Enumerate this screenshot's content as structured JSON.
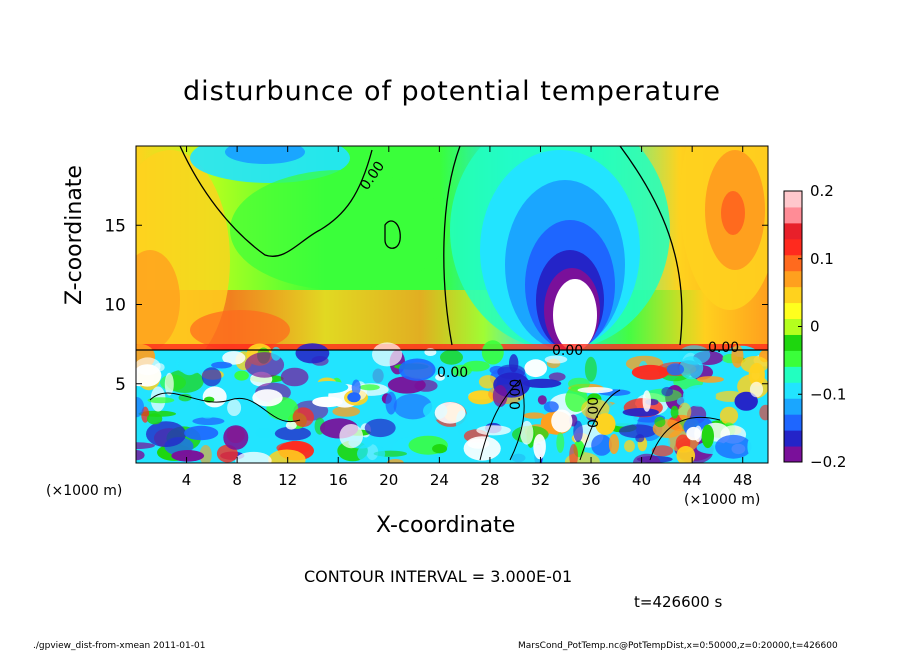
{
  "chart_data": {
    "type": "heatmap",
    "title": "disturbunce of potential temperature",
    "xlabel": "X-coordinate",
    "ylabel": "Z-coordinate",
    "x_unit_label": "(×1000 m)",
    "x_ticks": [
      4,
      8,
      12,
      16,
      20,
      24,
      28,
      32,
      36,
      40,
      44,
      48
    ],
    "y_ticks": [
      5,
      10,
      15
    ],
    "xlim": [
      0,
      50
    ],
    "ylim": [
      0,
      20
    ],
    "colorbar": {
      "range": [
        -0.2,
        0.2
      ],
      "tick_labels": [
        "0.2",
        "0.1",
        "0",
        "−0.1",
        "−0.2"
      ],
      "tick_values": [
        0.2,
        0.1,
        0,
        -0.1,
        -0.2
      ],
      "colors": [
        "#7a109a",
        "#2424c8",
        "#1e66ff",
        "#1aa6ff",
        "#22e4ff",
        "#22ffc0",
        "#3aff3a",
        "#1ed60e",
        "#b4ff1e",
        "#ffff1e",
        "#ffd21e",
        "#ffa01e",
        "#ff6a1e",
        "#ff2a1e",
        "#e8202a",
        "#ff8c96",
        "#ffc8cc"
      ]
    },
    "contour_labels": [
      "0.00",
      "0.00",
      "0.00",
      "0.00",
      "0.00",
      "0.00"
    ],
    "contour_interval_text": "CONTOUR INTERVAL = 3.000E-01",
    "time_text": "t=426600 s"
  },
  "footer": {
    "left": "./gpview_dist-from-xmean  2011-01-01",
    "right": "MarsCond_PotTemp.nc@PotTempDist,x=0:50000,z=0:20000,t=426600"
  }
}
